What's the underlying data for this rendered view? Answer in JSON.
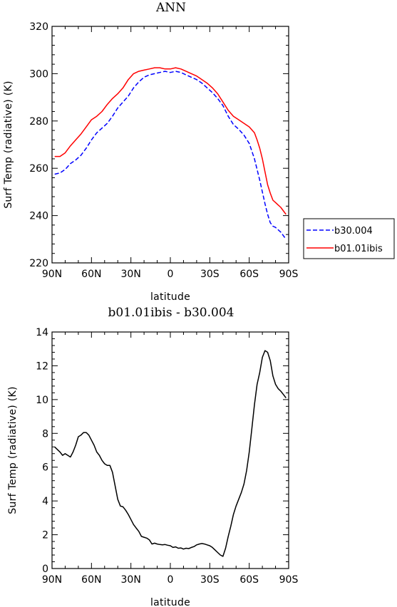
{
  "chart_data": [
    {
      "type": "line",
      "title": "ANN",
      "xlabel": "latitude",
      "ylabel": "Surf Temp (radiative) (K)",
      "x_tick_labels": [
        "90N",
        "60N",
        "30N",
        "0",
        "30S",
        "60S",
        "90S"
      ],
      "x_ticks": [
        90,
        60,
        30,
        0,
        -30,
        -60,
        -90
      ],
      "xlim": [
        90,
        -90
      ],
      "ylim": [
        220,
        320
      ],
      "y_ticks": [
        220,
        240,
        260,
        280,
        300,
        320
      ],
      "legend_placement": "right, outside",
      "series": [
        {
          "name": "b30.004",
          "color": "#0000ff",
          "dash": "dashed",
          "x": [
            88,
            84,
            80,
            76,
            72,
            68,
            64,
            60,
            56,
            52,
            48,
            44,
            40,
            36,
            32,
            28,
            24,
            20,
            16,
            12,
            8,
            4,
            0,
            -4,
            -8,
            -12,
            -16,
            -20,
            -24,
            -28,
            -32,
            -36,
            -40,
            -44,
            -48,
            -52,
            -56,
            -60,
            -64,
            -68,
            -70,
            -72,
            -74,
            -76,
            -78,
            -80,
            -82,
            -84,
            -86,
            -88
          ],
          "y": [
            257.5,
            258,
            259.5,
            262,
            263.5,
            265.5,
            268.5,
            272,
            275,
            277,
            279,
            282,
            285.5,
            288,
            290.5,
            294,
            296.5,
            298.5,
            299.5,
            300,
            300.5,
            301,
            300.5,
            301,
            300.5,
            299.5,
            298.5,
            297.5,
            296,
            294,
            292,
            289.5,
            286.5,
            282,
            278.5,
            276.5,
            274,
            270.5,
            264,
            255,
            250,
            245,
            240.5,
            237,
            235.5,
            235,
            234,
            233,
            231.5,
            230
          ]
        },
        {
          "name": "b01.01ibis",
          "color": "#ff0000",
          "dash": "solid",
          "x": [
            88,
            84,
            80,
            76,
            72,
            68,
            64,
            60,
            56,
            52,
            48,
            44,
            40,
            36,
            32,
            28,
            24,
            20,
            16,
            12,
            8,
            4,
            0,
            -4,
            -8,
            -12,
            -16,
            -20,
            -24,
            -28,
            -32,
            -36,
            -40,
            -44,
            -48,
            -52,
            -56,
            -60,
            -64,
            -66,
            -68,
            -70,
            -72,
            -74,
            -76,
            -78,
            -80,
            -82,
            -84,
            -86,
            -88
          ],
          "y": [
            265,
            265,
            266.5,
            269.5,
            272,
            274.5,
            277.5,
            280.5,
            282,
            284,
            287,
            289.5,
            291.5,
            294,
            297.5,
            300,
            301,
            301.5,
            302,
            302.5,
            302.5,
            302,
            302,
            302.5,
            302,
            301,
            300,
            299,
            297.5,
            296,
            294,
            291.5,
            288,
            284.5,
            282,
            280.5,
            279,
            277.5,
            275,
            272,
            268.5,
            264,
            258.5,
            253,
            249.5,
            246.5,
            245.5,
            244.5,
            243.5,
            242,
            240.5
          ]
        }
      ]
    },
    {
      "type": "line",
      "title": "b01.01ibis - b30.004",
      "xlabel": "latitude",
      "ylabel": "Surf Temp (radiative) (K)",
      "x_tick_labels": [
        "90N",
        "60N",
        "30N",
        "0",
        "30S",
        "60S",
        "90S"
      ],
      "x_ticks": [
        90,
        60,
        30,
        0,
        -30,
        -60,
        -90
      ],
      "xlim": [
        90,
        -90
      ],
      "ylim": [
        0,
        14
      ],
      "y_ticks": [
        0,
        2,
        4,
        6,
        8,
        10,
        12,
        14
      ],
      "series": [
        {
          "color": "#000000",
          "dash": "solid",
          "x": [
            88,
            84,
            82,
            80,
            76,
            74,
            72,
            70,
            68,
            66,
            64,
            62,
            60,
            58,
            56,
            54,
            52,
            50,
            48,
            46,
            44,
            42,
            40,
            38,
            36,
            34,
            32,
            30,
            28,
            26,
            24,
            22,
            20,
            18,
            16,
            14,
            12,
            10,
            8,
            6,
            4,
            2,
            0,
            -2,
            -4,
            -6,
            -8,
            -10,
            -12,
            -14,
            -16,
            -18,
            -20,
            -22,
            -24,
            -26,
            -28,
            -30,
            -32,
            -34,
            -36,
            -38,
            -40,
            -42,
            -44,
            -46,
            -48,
            -50,
            -52,
            -54,
            -56,
            -58,
            -60,
            -62,
            -64,
            -66,
            -68,
            -70,
            -72,
            -74,
            -76,
            -78,
            -80,
            -82,
            -84,
            -86,
            -88
          ],
          "y": [
            7.2,
            6.9,
            6.7,
            6.8,
            6.6,
            6.9,
            7.3,
            7.8,
            7.9,
            8.05,
            8.05,
            7.9,
            7.6,
            7.3,
            6.9,
            6.7,
            6.4,
            6.2,
            6.1,
            6.1,
            5.7,
            4.9,
            4.1,
            3.7,
            3.65,
            3.45,
            3.2,
            2.9,
            2.6,
            2.4,
            2.2,
            1.9,
            1.85,
            1.8,
            1.7,
            1.45,
            1.5,
            1.45,
            1.42,
            1.4,
            1.42,
            1.38,
            1.35,
            1.25,
            1.28,
            1.2,
            1.22,
            1.15,
            1.2,
            1.18,
            1.25,
            1.3,
            1.4,
            1.45,
            1.48,
            1.45,
            1.4,
            1.35,
            1.25,
            1.1,
            0.95,
            0.8,
            0.72,
            1.2,
            1.9,
            2.5,
            3.2,
            3.7,
            4.1,
            4.5,
            5.0,
            5.8,
            6.9,
            8.3,
            9.7,
            10.9,
            11.6,
            12.5,
            12.9,
            12.8,
            12.3,
            11.4,
            10.9,
            10.65,
            10.5,
            10.3,
            10.1
          ]
        }
      ]
    }
  ]
}
